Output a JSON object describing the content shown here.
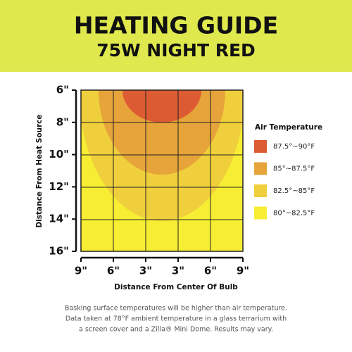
{
  "header": {
    "title": "HEATING GUIDE",
    "subtitle": "75W NIGHT RED"
  },
  "y_axis": {
    "title": "Distance From Heat Source",
    "ticks": [
      "6\"",
      "8\"",
      "10\"",
      "12\"",
      "14\"",
      "16\""
    ]
  },
  "x_axis": {
    "title": "Distance From Center Of Bulb",
    "ticks": [
      "9\"",
      "6\"",
      "3\"",
      "3\"",
      "6\"",
      "9\""
    ]
  },
  "legend": {
    "title": "Air Temperature",
    "items": [
      "87.5°~90°F",
      "85°~87.5°F",
      "82.5°~85°F",
      "80°~82.5°F"
    ]
  },
  "footer": [
    "Basking surface temperatures will be higher than air temperature.",
    "Data taken at 78°F ambient temperature in a glass terrarium with",
    "a screen cover and a Zilla® Mini Dome. Results may vary."
  ]
}
